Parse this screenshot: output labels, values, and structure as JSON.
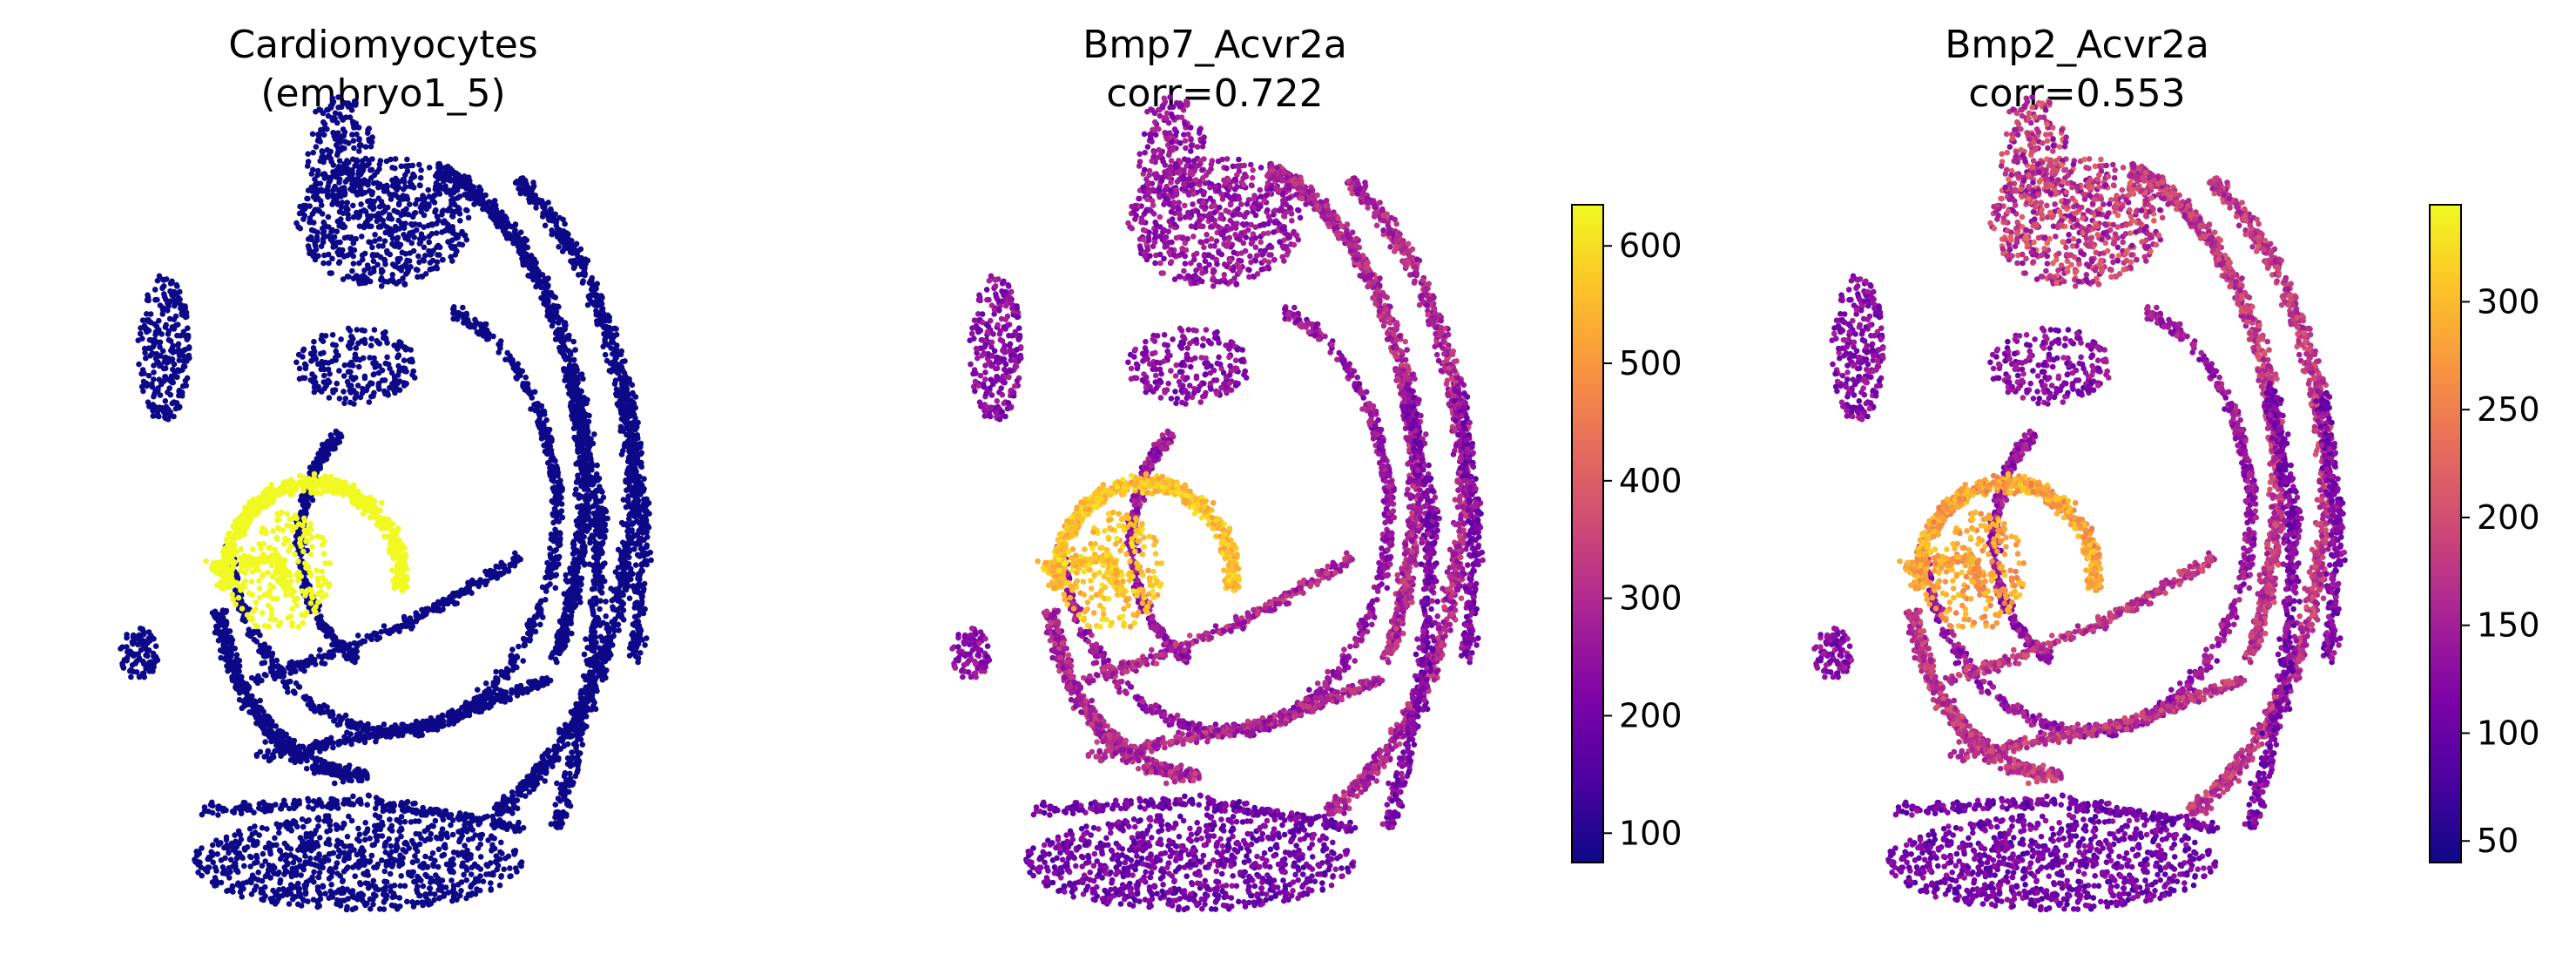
{
  "chart_data": [
    {
      "type": "scatter",
      "title": "Cardiomyocytes",
      "subtitle": "(embryo1_5)",
      "encoding": "categorical highlight",
      "colors": {
        "highlight": "#f0f921",
        "background": "#0d0887"
      },
      "axes": "off"
    },
    {
      "type": "scatter",
      "title": "Bmp7_Acvr2a",
      "subtitle": "corr=0.722",
      "colormap": "plasma",
      "colorbar": {
        "min": 75,
        "max": 635,
        "ticks": [
          100,
          200,
          300,
          400,
          500,
          600
        ]
      },
      "axes": "off"
    },
    {
      "type": "scatter",
      "title": "Bmp2_Acvr2a",
      "subtitle": "corr=0.553",
      "colormap": "plasma",
      "colorbar": {
        "min": 40,
        "max": 345,
        "ticks": [
          50,
          100,
          150,
          200,
          250,
          300
        ]
      },
      "axes": "off"
    }
  ]
}
